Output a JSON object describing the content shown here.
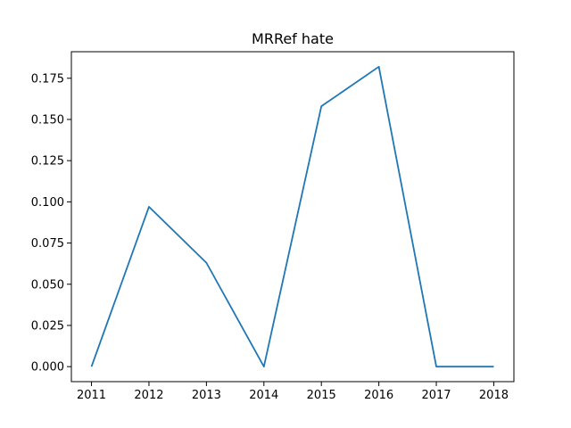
{
  "chart_data": {
    "type": "line",
    "title": "MRRef hate",
    "xlabel": "",
    "ylabel": "",
    "x": [
      2011,
      2012,
      2013,
      2014,
      2015,
      2016,
      2017,
      2018
    ],
    "series": [
      {
        "values": [
          0.0,
          0.097,
          0.063,
          0.0,
          0.158,
          0.182,
          0.0,
          0.0
        ],
        "color": "#1f77b4"
      }
    ],
    "xlim": [
      2010.65,
      2018.35
    ],
    "ylim": [
      -0.0091,
      0.1911
    ],
    "xticks": [
      "2011",
      "2012",
      "2013",
      "2014",
      "2015",
      "2016",
      "2017",
      "2018"
    ],
    "yticks": [
      "0.000",
      "0.025",
      "0.050",
      "0.075",
      "0.100",
      "0.125",
      "0.150",
      "0.175"
    ],
    "ytick_values": [
      0.0,
      0.025,
      0.05,
      0.075,
      0.1,
      0.125,
      0.15,
      0.175
    ],
    "grid": false,
    "legend": "none"
  }
}
